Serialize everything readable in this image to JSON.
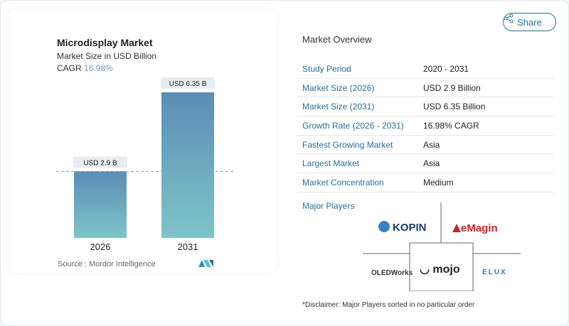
{
  "chart_data": {
    "type": "bar",
    "title": "Microdisplay Market",
    "subtitle": "Market Size in USD Billion",
    "cagr_label": "CAGR",
    "cagr_value": "16.98%",
    "categories": [
      "2026",
      "2031"
    ],
    "values": [
      2.9,
      6.35
    ],
    "data_labels": [
      "USD 2.9 B",
      "USD 6.35 B"
    ],
    "bar_color_top": "#5b8db5",
    "bar_color_bottom": "#7ec4c9",
    "reference_line": "dashed line at 2026 value",
    "source": "Source :  Mordor Intelligence"
  },
  "share_label": "Share",
  "overview": {
    "title": "Market Overview",
    "rows": [
      {
        "k": "Study Period",
        "v": "2020 - 2031"
      },
      {
        "k": "Market Size (2026)",
        "v": "USD 2.9 Billion"
      },
      {
        "k": "Market Size (2031)",
        "v": "USD 6.35 Billion"
      },
      {
        "k": "Growth Rate (2026 - 2031)",
        "v": "16.98% CAGR"
      },
      {
        "k": "Fastest Growing Market",
        "v": "Asia"
      },
      {
        "k": "Largest Market",
        "v": "Asia"
      },
      {
        "k": "Market Concentration",
        "v": "Medium"
      }
    ]
  },
  "players": {
    "title": "Major Players",
    "logos": [
      "KOPIN",
      "eMagin",
      "OLEDWorks",
      "mojo",
      "ELUX"
    ]
  },
  "disclaimer": "*Disclaimer: Major Players sorted in no particular order"
}
